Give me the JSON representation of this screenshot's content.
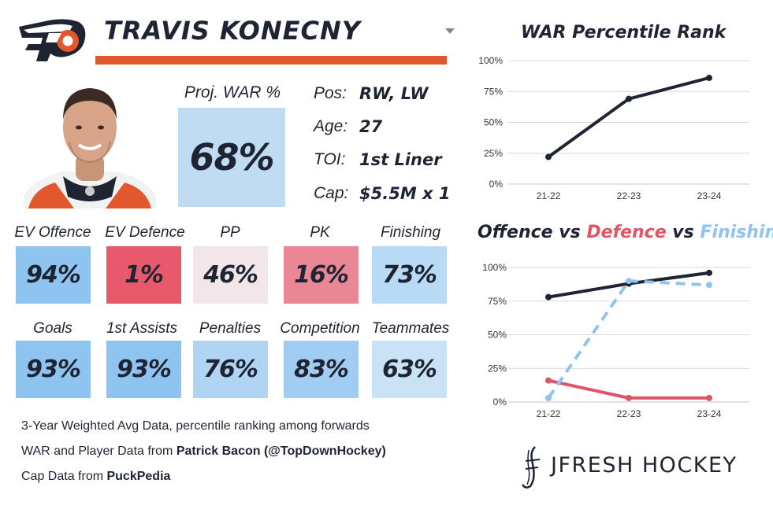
{
  "player": {
    "name": "TRAVIS KONECNY",
    "proj_war_label": "Proj. WAR %",
    "proj_war_value": "68%",
    "info": [
      {
        "label": "Pos:",
        "value": "RW, LW"
      },
      {
        "label": "Age:",
        "value": "27"
      },
      {
        "label": "TOI:",
        "value": "1st Liner"
      },
      {
        "label": "Cap:",
        "value": "$5.5M x 1"
      }
    ]
  },
  "stats_row1": [
    {
      "label": "EV Offence",
      "value": "94%",
      "color": "#8ec4ef"
    },
    {
      "label": "EV Defence",
      "value": "1%",
      "color": "#e85a6b"
    },
    {
      "label": "PP",
      "value": "46%",
      "color": "#f3e6e8"
    },
    {
      "label": "PK",
      "value": "16%",
      "color": "#ea8796"
    },
    {
      "label": "Finishing",
      "value": "73%",
      "color": "#b8daf5"
    }
  ],
  "stats_row2": [
    {
      "label": "Goals",
      "value": "93%",
      "color": "#8ec4ef"
    },
    {
      "label": "1st Assists",
      "value": "93%",
      "color": "#8ec4ef"
    },
    {
      "label": "Penalties",
      "value": "76%",
      "color": "#b0d4f3"
    },
    {
      "label": "Competition",
      "value": "83%",
      "color": "#a0cdf1"
    },
    {
      "label": "Teammates",
      "value": "63%",
      "color": "#c9e2f6"
    }
  ],
  "footer": {
    "line1": "3-Year Weighted Avg Data, percentile ranking among forwards",
    "line2_prefix": "WAR and Player Data from ",
    "line2_bold": "Patrick Bacon (@TopDownHockey)",
    "line3_prefix": "Cap Data from ",
    "line3_bold": "PuckPedia"
  },
  "brand": {
    "text": "JFRESH HOCKEY"
  },
  "colors": {
    "navy": "#1f2433",
    "orange": "#e2572c",
    "red": "#e05565",
    "lightblue": "#8ec4ef",
    "grid": "#d9d9d9"
  },
  "chart_data": [
    {
      "type": "line",
      "title": "WAR Percentile Rank",
      "categories": [
        "21-22",
        "22-23",
        "23-24"
      ],
      "ylim": [
        0,
        100
      ],
      "yticks": [
        "0%",
        "25%",
        "50%",
        "75%",
        "100%"
      ],
      "series": [
        {
          "values": [
            22,
            69,
            86
          ],
          "color": "#1f2433",
          "dashed": false
        }
      ]
    },
    {
      "type": "line",
      "title_parts": [
        {
          "text": "Offence",
          "color": "#1f2433"
        },
        {
          "text": " vs ",
          "color": "#1f2433"
        },
        {
          "text": "Defence",
          "color": "#e05565"
        },
        {
          "text": " vs ",
          "color": "#1f2433"
        },
        {
          "text": "Finishing",
          "color": "#8ec4ef"
        }
      ],
      "categories": [
        "21-22",
        "22-23",
        "23-24"
      ],
      "ylim": [
        0,
        100
      ],
      "yticks": [
        "0%",
        "25%",
        "50%",
        "75%",
        "100%"
      ],
      "series": [
        {
          "name": "Offence",
          "values": [
            78,
            88,
            96
          ],
          "color": "#1f2433",
          "dashed": false
        },
        {
          "name": "Defence",
          "values": [
            16,
            3,
            3
          ],
          "color": "#e05565",
          "dashed": false
        },
        {
          "name": "Finishing",
          "values": [
            3,
            90,
            87
          ],
          "color": "#8ec4ef",
          "dashed": true
        }
      ]
    }
  ]
}
